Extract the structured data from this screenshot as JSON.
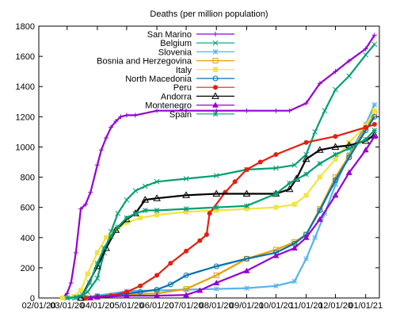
{
  "chart_data": {
    "type": "line",
    "title": "Deaths (per million population)",
    "xlabel": "",
    "ylabel": "",
    "ylim": [
      0,
      1800
    ],
    "yticks": [
      0,
      200,
      400,
      600,
      800,
      1000,
      1200,
      1400,
      1600,
      1800
    ],
    "xticks": [
      "02/01/20",
      "03/01/20",
      "04/01/20",
      "05/01/20",
      "06/01/20",
      "07/01/20",
      "08/01/20",
      "09/01/20",
      "10/01/20",
      "11/01/20",
      "12/01/20",
      "01/01/21"
    ],
    "grid": false,
    "legend_position": "top-right",
    "series": [
      {
        "name": "San Marino",
        "color": "#9400d3",
        "marker": "plus",
        "x": [
          "02/25/20",
          "03/01/20",
          "03/05/20",
          "03/10/20",
          "03/15/20",
          "03/20/20",
          "03/25/20",
          "04/01/20",
          "04/05/20",
          "04/10/20",
          "04/15/20",
          "04/20/20",
          "04/25/20",
          "05/01/20",
          "05/10/20",
          "06/01/20",
          "07/01/20",
          "08/01/20",
          "09/01/20",
          "10/01/20",
          "10/15/20",
          "11/01/20",
          "11/15/20",
          "12/01/20",
          "12/15/20",
          "01/01/21",
          "01/10/21"
        ],
        "y": [
          0,
          30,
          100,
          300,
          590,
          620,
          700,
          880,
          980,
          1060,
          1130,
          1170,
          1200,
          1210,
          1210,
          1240,
          1240,
          1240,
          1240,
          1240,
          1240,
          1290,
          1420,
          1500,
          1570,
          1650,
          1740
        ]
      },
      {
        "name": "Belgium",
        "color": "#009e73",
        "marker": "x",
        "x": [
          "03/05/20",
          "03/15/20",
          "03/22/20",
          "04/01/20",
          "04/08/20",
          "04/15/20",
          "04/22/20",
          "05/01/20",
          "05/10/20",
          "05/20/20",
          "06/01/20",
          "07/01/20",
          "08/01/20",
          "09/01/20",
          "10/01/20",
          "10/20/20",
          "11/01/20",
          "11/10/20",
          "11/20/20",
          "12/01/20",
          "12/15/20",
          "01/01/21",
          "01/10/21"
        ],
        "y": [
          0,
          10,
          40,
          130,
          300,
          440,
          560,
          650,
          710,
          740,
          770,
          790,
          810,
          850,
          860,
          880,
          950,
          1100,
          1240,
          1380,
          1470,
          1610,
          1680
        ]
      },
      {
        "name": "Slovenia",
        "color": "#56b4e9",
        "marker": "star",
        "x": [
          "03/10/20",
          "04/01/20",
          "05/01/20",
          "06/01/20",
          "07/01/20",
          "08/01/20",
          "09/01/20",
          "10/01/20",
          "10/20/20",
          "11/01/20",
          "11/10/20",
          "11/20/20",
          "12/01/20",
          "12/15/20",
          "01/01/21",
          "01/10/21"
        ],
        "y": [
          0,
          15,
          45,
          50,
          55,
          60,
          65,
          80,
          110,
          260,
          400,
          560,
          750,
          950,
          1150,
          1280
        ]
      },
      {
        "name": "Bosnia and Herzegovina",
        "color": "#e69f00",
        "marker": "square",
        "x": [
          "03/20/20",
          "04/01/20",
          "05/01/20",
          "06/01/20",
          "07/01/20",
          "08/01/20",
          "09/01/20",
          "10/01/20",
          "10/20/20",
          "11/01/20",
          "11/15/20",
          "12/01/20",
          "12/15/20",
          "01/01/21",
          "01/10/21"
        ],
        "y": [
          0,
          10,
          25,
          30,
          60,
          150,
          260,
          320,
          370,
          420,
          590,
          800,
          940,
          1130,
          1220
        ]
      },
      {
        "name": "Italy",
        "color": "#f0e442",
        "marker": "square-filled",
        "x": [
          "02/25/20",
          "03/08/20",
          "03/15/20",
          "03/22/20",
          "04/01/20",
          "04/10/20",
          "04/20/20",
          "05/01/20",
          "05/15/20",
          "06/01/20",
          "07/01/20",
          "08/01/20",
          "09/01/20",
          "10/01/20",
          "10/20/20",
          "11/01/20",
          "11/15/20",
          "12/01/20",
          "12/15/20",
          "01/01/21",
          "01/10/21"
        ],
        "y": [
          0,
          10,
          50,
          160,
          300,
          400,
          450,
          500,
          530,
          550,
          570,
          580,
          590,
          600,
          620,
          680,
          800,
          920,
          1030,
          1140,
          1240
        ]
      },
      {
        "name": "North Macedonia",
        "color": "#0072b2",
        "marker": "circle",
        "x": [
          "03/15/20",
          "04/01/20",
          "05/01/20",
          "05/15/20",
          "06/01/20",
          "06/15/20",
          "07/01/20",
          "08/01/20",
          "09/01/20",
          "10/01/20",
          "10/20/20",
          "11/01/20",
          "11/15/20",
          "12/01/20",
          "12/15/20",
          "01/01/21",
          "01/10/21"
        ],
        "y": [
          0,
          10,
          30,
          40,
          55,
          90,
          150,
          210,
          260,
          300,
          360,
          420,
          580,
          780,
          930,
          1110,
          1200
        ]
      },
      {
        "name": "Peru",
        "color": "#e51e10",
        "marker": "circle-filled",
        "x": [
          "03/20/20",
          "04/01/20",
          "04/15/20",
          "05/01/20",
          "05/15/20",
          "06/01/20",
          "06/15/20",
          "07/01/20",
          "07/15/20",
          "07/22/20",
          "07/25/20",
          "08/10/20",
          "08/20/20",
          "09/01/20",
          "09/15/20",
          "10/01/20",
          "11/01/20",
          "12/01/20",
          "01/01/21",
          "01/10/21"
        ],
        "y": [
          0,
          5,
          15,
          40,
          80,
          150,
          230,
          310,
          380,
          420,
          560,
          700,
          770,
          850,
          900,
          950,
          1030,
          1070,
          1130,
          1150
        ]
      },
      {
        "name": "Andorra",
        "color": "#000000",
        "marker": "triangle",
        "x": [
          "03/15/20",
          "04/01/20",
          "04/10/20",
          "04/20/20",
          "05/01/20",
          "05/10/20",
          "05/20/20",
          "06/01/20",
          "07/01/20",
          "08/01/20",
          "09/01/20",
          "10/01/20",
          "10/15/20",
          "10/22/20",
          "11/01/20",
          "11/15/20",
          "12/01/20",
          "12/15/20",
          "01/01/21",
          "01/10/21"
        ],
        "y": [
          0,
          210,
          330,
          450,
          520,
          560,
          650,
          660,
          680,
          690,
          690,
          690,
          720,
          790,
          920,
          980,
          1000,
          1010,
          1040,
          1080
        ]
      },
      {
        "name": "Montenegro",
        "color": "#9400d3",
        "marker": "triangle-filled",
        "x": [
          "03/25/20",
          "04/01/20",
          "05/01/20",
          "06/01/20",
          "07/01/20",
          "07/15/20",
          "08/01/20",
          "09/01/20",
          "10/01/20",
          "10/20/20",
          "11/01/20",
          "11/15/20",
          "12/01/20",
          "12/15/20",
          "01/01/21",
          "01/10/21"
        ],
        "y": [
          0,
          5,
          15,
          15,
          20,
          50,
          100,
          180,
          280,
          330,
          400,
          520,
          680,
          830,
          980,
          1070
        ]
      },
      {
        "name": "Spain",
        "color": "#009e73",
        "marker": "star",
        "x": [
          "03/01/20",
          "03/10/20",
          "03/17/20",
          "03/24/20",
          "04/01/20",
          "04/08/20",
          "04/15/20",
          "04/22/20",
          "05/01/20",
          "05/10/20",
          "05/20/20",
          "06/01/20",
          "07/01/20",
          "08/01/20",
          "09/01/20",
          "10/01/20",
          "10/15/20",
          "11/01/20",
          "11/15/20",
          "12/01/20",
          "12/15/20",
          "01/01/21",
          "01/10/21"
        ],
        "y": [
          0,
          5,
          20,
          100,
          230,
          330,
          410,
          470,
          530,
          560,
          580,
          580,
          590,
          600,
          610,
          690,
          760,
          820,
          890,
          950,
          990,
          1050,
          1110
        ]
      }
    ]
  }
}
